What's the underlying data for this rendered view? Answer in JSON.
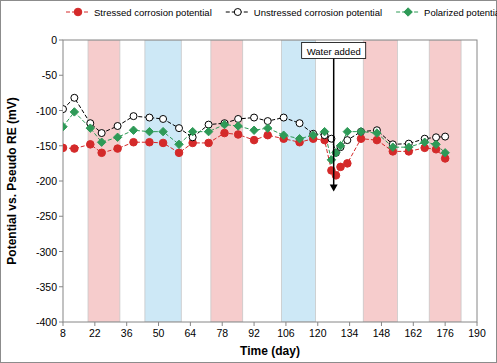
{
  "chart_data": {
    "type": "line",
    "x_label": "Time (day)",
    "y_label": "Potential vs. Pseudo RE (mV)",
    "x": [
      8,
      13,
      20,
      25,
      32,
      39,
      46,
      52,
      59,
      65,
      72,
      79,
      85,
      92,
      98,
      105,
      112,
      118,
      123,
      126,
      128,
      130,
      133,
      139,
      146,
      153,
      160,
      167,
      172,
      176
    ],
    "series": [
      {
        "name": "Stressed corrosion potential",
        "color": "#d42a2a",
        "marker": "circle",
        "line_style": "dashed",
        "values": [
          -153,
          -154,
          -148,
          -160,
          -154,
          -145,
          -145,
          -146,
          -160,
          -146,
          -146,
          -132,
          -134,
          -142,
          -135,
          -140,
          -145,
          -140,
          -142,
          -185,
          -192,
          -180,
          -175,
          -140,
          -142,
          -158,
          -158,
          -153,
          -155,
          -168
        ]
      },
      {
        "name": "Unstressed corrosion potential",
        "color": "#000000",
        "marker": "open_circle",
        "line_style": "dashed",
        "values": [
          -98,
          -82,
          -118,
          -132,
          -122,
          -108,
          -110,
          -112,
          -125,
          -138,
          -120,
          -118,
          -112,
          -110,
          -115,
          -110,
          -118,
          -133,
          -135,
          -140,
          -160,
          -152,
          -142,
          -130,
          -128,
          -148,
          -147,
          -140,
          -138,
          -137
        ]
      },
      {
        "name": "Polarized potential",
        "color": "#2e9a57",
        "marker": "diamond",
        "line_style": "dashed",
        "values": [
          -123,
          -102,
          -125,
          -145,
          -138,
          -128,
          -130,
          -130,
          -148,
          -130,
          -130,
          -120,
          -122,
          -128,
          -125,
          -135,
          -140,
          -135,
          -130,
          -170,
          -160,
          -150,
          -130,
          -130,
          -132,
          -152,
          -152,
          -145,
          -148,
          -160
        ]
      }
    ],
    "shaded_periods": [
      {
        "start": 19,
        "end": 33,
        "color": "#f6cccc"
      },
      {
        "start": 44,
        "end": 60,
        "color": "#cde8f6"
      },
      {
        "start": 73,
        "end": 87,
        "color": "#f6cccc"
      },
      {
        "start": 104,
        "end": 119,
        "color": "#cde8f6"
      },
      {
        "start": 140,
        "end": 155,
        "color": "#f6cccc"
      },
      {
        "start": 169,
        "end": 183,
        "color": "#f6cccc"
      }
    ],
    "annotation": {
      "text": "Water added",
      "x": 127,
      "y": -15,
      "arrow_to": -215
    },
    "xlim": [
      8,
      190
    ],
    "xticks": [
      8,
      22,
      36,
      50,
      64,
      78,
      92,
      106,
      120,
      134,
      148,
      162,
      176,
      190
    ],
    "ylim": [
      -400,
      0
    ],
    "yticks": [
      0,
      -50,
      -100,
      -150,
      -200,
      -250,
      -300,
      -350,
      -400
    ],
    "grid": false,
    "legend": "top"
  }
}
